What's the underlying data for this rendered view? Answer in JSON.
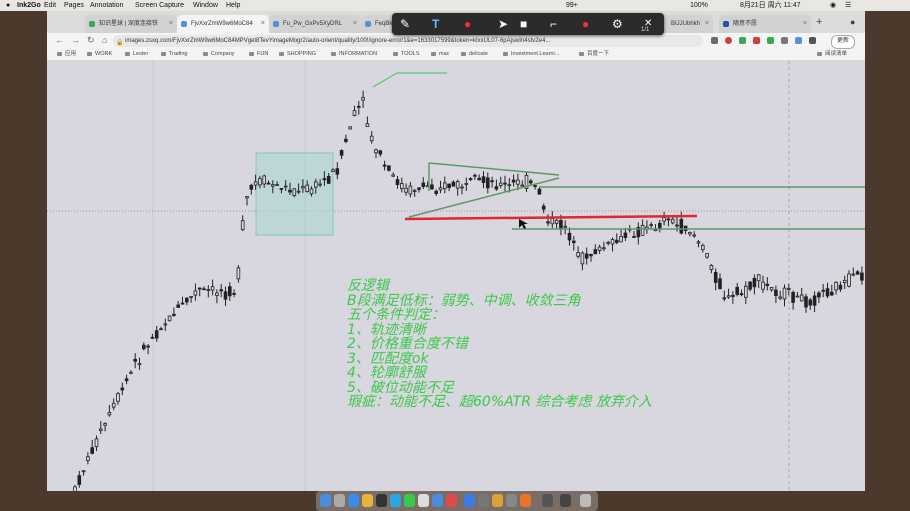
{
  "menubar": {
    "app_name": "Ink2Go",
    "items": [
      "Edit",
      "Pages",
      "Annotation",
      "Screen Capture",
      "Window",
      "Help"
    ],
    "battery": "100%",
    "date_time": "8月21日 周六  11:47",
    "status_badge": "99+"
  },
  "tabs": [
    {
      "label": "知识星球 | 深度连接铁",
      "active": false,
      "color": "#3aa757"
    },
    {
      "label": "FjvXxrZmW9w6MoC84",
      "active": true,
      "color": "#5a8fd8"
    },
    {
      "label": "Fu_Pw_GxPv5XyDRL",
      "active": false,
      "color": "#5a8fd8"
    },
    {
      "label": "FeqBk",
      "active": false,
      "color": "#5a8fd8"
    },
    {
      "label": "BIJJUbhkh",
      "active": false,
      "color": "#5a8fd8"
    },
    {
      "label": "随意不愿",
      "active": false,
      "color": "#2b4fa8"
    }
  ],
  "address": {
    "url": "images.zsxq.com/FjvXxrZmW9w6MoC84MPVget8TevYimageMogr2/auto-orient/quality/100!/ignore-error/1&e=1633017599&token=kIxxUL07-6pAjswIn4stv2e4..."
  },
  "toolbar": {
    "update_label": "更新"
  },
  "bookmarks": {
    "items": [
      "应用",
      "WORK",
      "Lester",
      "Trading",
      "Company",
      "FUN",
      "SHOPPING",
      "INFORMATION",
      "TOOLS",
      "mac",
      "delicate",
      "Investment Learni...",
      "百度一下"
    ],
    "reading_list": "阅读清单"
  },
  "ink_toolbar": {
    "page_counter": "1/1"
  },
  "annotation": {
    "lines": [
      "反逻辑",
      "B段满足低标：弱势、中调、收敛三角",
      "五个条件判定：",
      "1、轨迹清晰",
      "2、价格重合度不错",
      "3、匹配度ok",
      "4、轮廓舒服",
      "5、破位动能不足",
      "瑕疵：动能不足、超60%ATR 综合考虑 放弃介入"
    ],
    "color": "#3cc84a"
  },
  "colors": {
    "chart_bg": "#d8d6df",
    "triangle_line": "#5a9a62",
    "red_line": "#e0282e",
    "highlight_box": "#a8d8d0"
  }
}
